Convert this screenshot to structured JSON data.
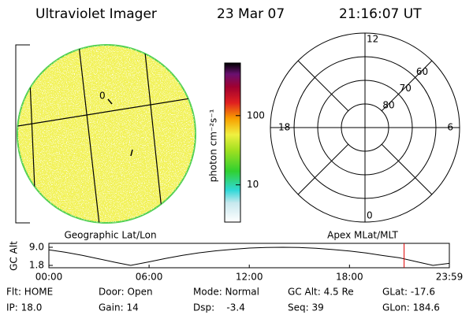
{
  "header": {
    "title": "Ultraviolet Imager",
    "date": "23 Mar 07",
    "time": "21:16:07 UT"
  },
  "image_panel": {
    "caption": "Geographic Lat/Lon",
    "marker_label": "0"
  },
  "colorbar": {
    "label": "photon cm⁻²s⁻¹",
    "scale": "log",
    "lim": [
      2.9,
      575
    ],
    "ticks": [
      10,
      100
    ]
  },
  "polar_panel": {
    "caption": "Apex MLat/MLT",
    "mlt_labels": [
      "0",
      "6",
      "12",
      "18"
    ],
    "lat_rings": [
      60,
      70,
      80
    ],
    "outer_lat": 50
  },
  "altitude_plot": {
    "ylabel": "GC Alt",
    "ylim": [
      1.8,
      9.0
    ],
    "yticks": [
      {
        "value": 9.0,
        "label": "9.0"
      },
      {
        "value": 1.8,
        "label": "1.8"
      }
    ],
    "xlim": [
      0,
      23.98
    ],
    "xticks": [
      {
        "value": 0,
        "label": "00:00"
      },
      {
        "value": 6,
        "label": "06:00"
      },
      {
        "value": 12,
        "label": "12:00"
      },
      {
        "value": 18,
        "label": "18:00"
      },
      {
        "value": 23.98,
        "label": "23:59"
      }
    ],
    "x": [
      0,
      1,
      2,
      3,
      4,
      4.9,
      6,
      7,
      8,
      9,
      10,
      11,
      12,
      13,
      14,
      15,
      16,
      17,
      18,
      19,
      20,
      21,
      22,
      23,
      23.98
    ],
    "values": [
      8.0,
      7.0,
      5.8,
      4.4,
      3.0,
      1.8,
      3.2,
      4.6,
      5.8,
      6.8,
      7.6,
      8.2,
      8.7,
      8.95,
      9.0,
      8.9,
      8.6,
      8.1,
      7.5,
      6.7,
      5.7,
      4.8,
      3.3,
      1.8,
      2.6
    ],
    "current_time": 21.27,
    "current_color": "#e00000"
  },
  "footer": {
    "rows": [
      [
        "Flt: HOME",
        "Door: Open",
        "Mode: Normal",
        "GC Alt: 4.5 Re",
        "GLat: -17.6"
      ],
      [
        "IP: 18.0",
        "Gain: 14",
        "Dsp:    -3.4",
        "Seq: 39",
        "GLon: 184.6"
      ]
    ]
  }
}
